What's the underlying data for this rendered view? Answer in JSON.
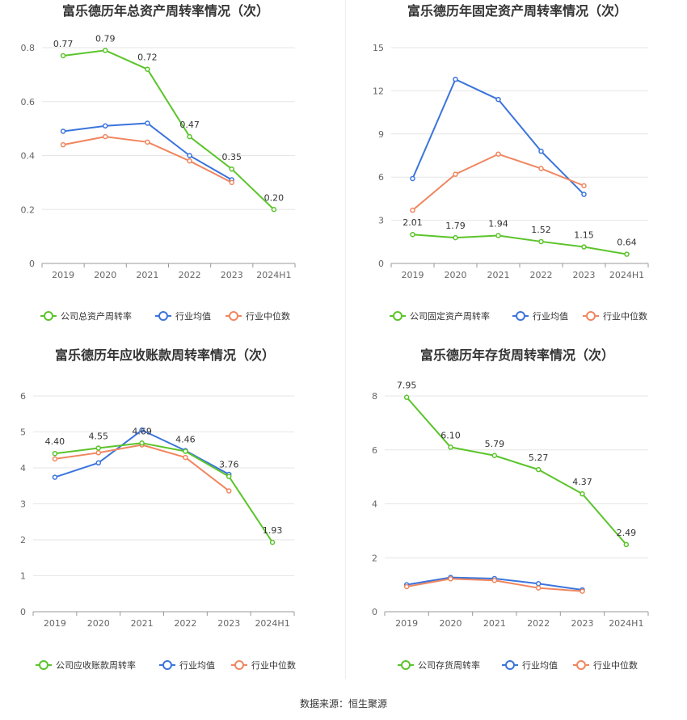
{
  "source_text": "数据来源：恒生聚源",
  "colors": {
    "company": "#5bc42a",
    "industry_avg": "#3b74dc",
    "industry_median": "#f0865f"
  },
  "chart_data": [
    {
      "type": "line",
      "title": "富乐德历年总资产周转率情况（次）",
      "categories": [
        "2019",
        "2020",
        "2021",
        "2022",
        "2023",
        "2024H1"
      ],
      "ylim": [
        0,
        0.8
      ],
      "yticks": [
        "0",
        "0.2",
        "0.4",
        "0.6",
        "0.8"
      ],
      "grid": true,
      "legend_position": "bottom",
      "series": [
        {
          "name": "公司总资产周转率",
          "values": [
            0.77,
            0.79,
            0.72,
            0.47,
            0.35,
            0.2
          ],
          "labels": [
            "0.77",
            "0.79",
            "0.72",
            "0.47",
            "0.35",
            "0.20"
          ]
        },
        {
          "name": "行业均值",
          "values": [
            0.49,
            0.51,
            0.52,
            0.4,
            0.31,
            null
          ]
        },
        {
          "name": "行业中位数",
          "values": [
            0.44,
            0.47,
            0.45,
            0.38,
            0.3,
            null
          ]
        }
      ]
    },
    {
      "type": "line",
      "title": "富乐德历年固定资产周转率情况（次）",
      "categories": [
        "2019",
        "2020",
        "2021",
        "2022",
        "2023",
        "2024H1"
      ],
      "ylim": [
        0,
        15
      ],
      "yticks": [
        "0",
        "3",
        "6",
        "9",
        "12",
        "15"
      ],
      "grid": true,
      "legend_position": "bottom",
      "series": [
        {
          "name": "公司固定资产周转率",
          "values": [
            2.01,
            1.79,
            1.94,
            1.52,
            1.15,
            0.64
          ],
          "labels": [
            "2.01",
            "1.79",
            "1.94",
            "1.52",
            "1.15",
            "0.64"
          ]
        },
        {
          "name": "行业均值",
          "values": [
            5.9,
            12.8,
            11.4,
            7.8,
            4.8,
            null
          ]
        },
        {
          "name": "行业中位数",
          "values": [
            3.7,
            6.2,
            7.6,
            6.6,
            5.4,
            null
          ]
        }
      ]
    },
    {
      "type": "line",
      "title": "富乐德历年应收账款周转率情况（次）",
      "categories": [
        "2019",
        "2020",
        "2021",
        "2022",
        "2023",
        "2024H1"
      ],
      "ylim": [
        0,
        6
      ],
      "yticks": [
        "0",
        "1",
        "2",
        "3",
        "4",
        "5",
        "6"
      ],
      "grid": true,
      "legend_position": "bottom",
      "series": [
        {
          "name": "公司应收账款周转率",
          "values": [
            4.4,
            4.55,
            4.69,
            4.46,
            3.76,
            1.93
          ],
          "labels": [
            "4.40",
            "4.55",
            "4.69",
            "4.46",
            "3.76",
            "1.93"
          ]
        },
        {
          "name": "行业均值",
          "values": [
            3.74,
            4.14,
            5.05,
            4.48,
            3.82,
            null
          ]
        },
        {
          "name": "行业中位数",
          "values": [
            4.25,
            4.42,
            4.64,
            4.29,
            3.36,
            null
          ]
        }
      ]
    },
    {
      "type": "line",
      "title": "富乐德历年存货周转率情况（次）",
      "categories": [
        "2019",
        "2020",
        "2021",
        "2022",
        "2023",
        "2024H1"
      ],
      "ylim": [
        0,
        8
      ],
      "yticks": [
        "0",
        "2",
        "4",
        "6",
        "8"
      ],
      "grid": true,
      "legend_position": "bottom",
      "series": [
        {
          "name": "公司存货周转率",
          "values": [
            7.95,
            6.1,
            5.79,
            5.27,
            4.37,
            2.49
          ],
          "labels": [
            "7.95",
            "6.10",
            "5.79",
            "5.27",
            "4.37",
            "2.49"
          ]
        },
        {
          "name": "行业均值",
          "values": [
            1.0,
            1.27,
            1.23,
            1.04,
            0.81,
            null
          ]
        },
        {
          "name": "行业中位数",
          "values": [
            0.93,
            1.22,
            1.16,
            0.88,
            0.76,
            null
          ]
        }
      ]
    }
  ]
}
